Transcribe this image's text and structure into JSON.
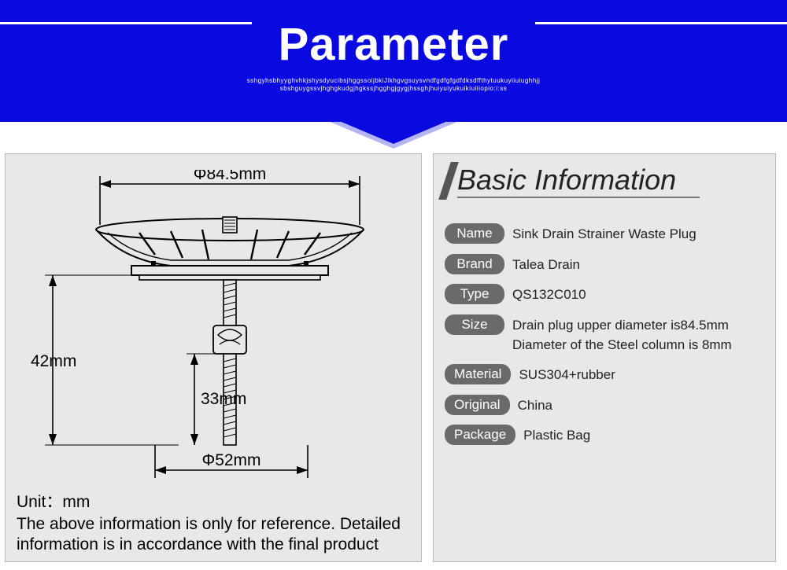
{
  "header": {
    "title": "Parameter",
    "subtitle_line1": "sshgyhsbhyyghvhkjshysdyucibsjhggssoijbkiJikhgvgsuysvndfgdfgfgdfdksdffthytuukuyiiuiughhjj",
    "subtitle_line2": "sbshguygssvjhghgkudgjhgkssjhgghgjgygjhssghjhuiyuiyukuikiuiiiopio:i:ss",
    "bg_color": "#0a0ae0",
    "text_color": "#ffffff"
  },
  "diagram": {
    "top_diameter": "Φ84.5mm",
    "height_left": "42mm",
    "shaft_length": "33mm",
    "bottom_diameter": "Φ52mm",
    "unit_label": "Unit：mm",
    "disclaimer": "The above information is only for reference. Detailed information is in accordance with the final product",
    "stroke_color": "#000000",
    "panel_bg": "#e8e8e8"
  },
  "info": {
    "section_title": "Basic Information",
    "rows": [
      {
        "label": "Name",
        "value": "Sink Drain Strainer Waste Plug"
      },
      {
        "label": "Brand",
        "value": "Talea Drain"
      },
      {
        "label": "Type",
        "value": "QS132C010"
      },
      {
        "label": "Size",
        "value": "Drain plug upper diameter is84.5mm\nDiameter of the Steel column is 8mm"
      },
      {
        "label": "Material",
        "value": "SUS304+rubber"
      },
      {
        "label": "Original",
        "value": "China"
      },
      {
        "label": "Package",
        "value": "Plastic Bag"
      }
    ],
    "badge_bg": "#6a6a6a",
    "badge_text_color": "#ffffff",
    "panel_bg": "#e8e8e8"
  }
}
